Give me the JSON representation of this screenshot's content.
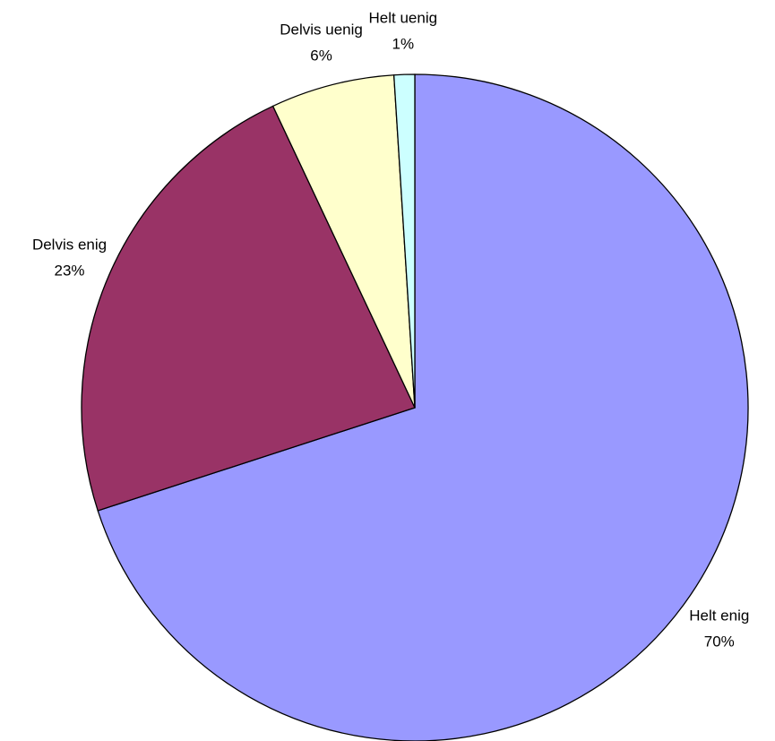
{
  "chart_data": {
    "type": "pie",
    "categories": [
      "Helt enig",
      "Delvis enig",
      "Delvis uenig",
      "Helt uenig"
    ],
    "values": [
      70,
      23,
      6,
      1
    ],
    "value_labels": [
      "70%",
      "23%",
      "6%",
      "1%"
    ],
    "colors": [
      "#9999ff",
      "#993366",
      "#ffffcc",
      "#ccffff"
    ]
  }
}
